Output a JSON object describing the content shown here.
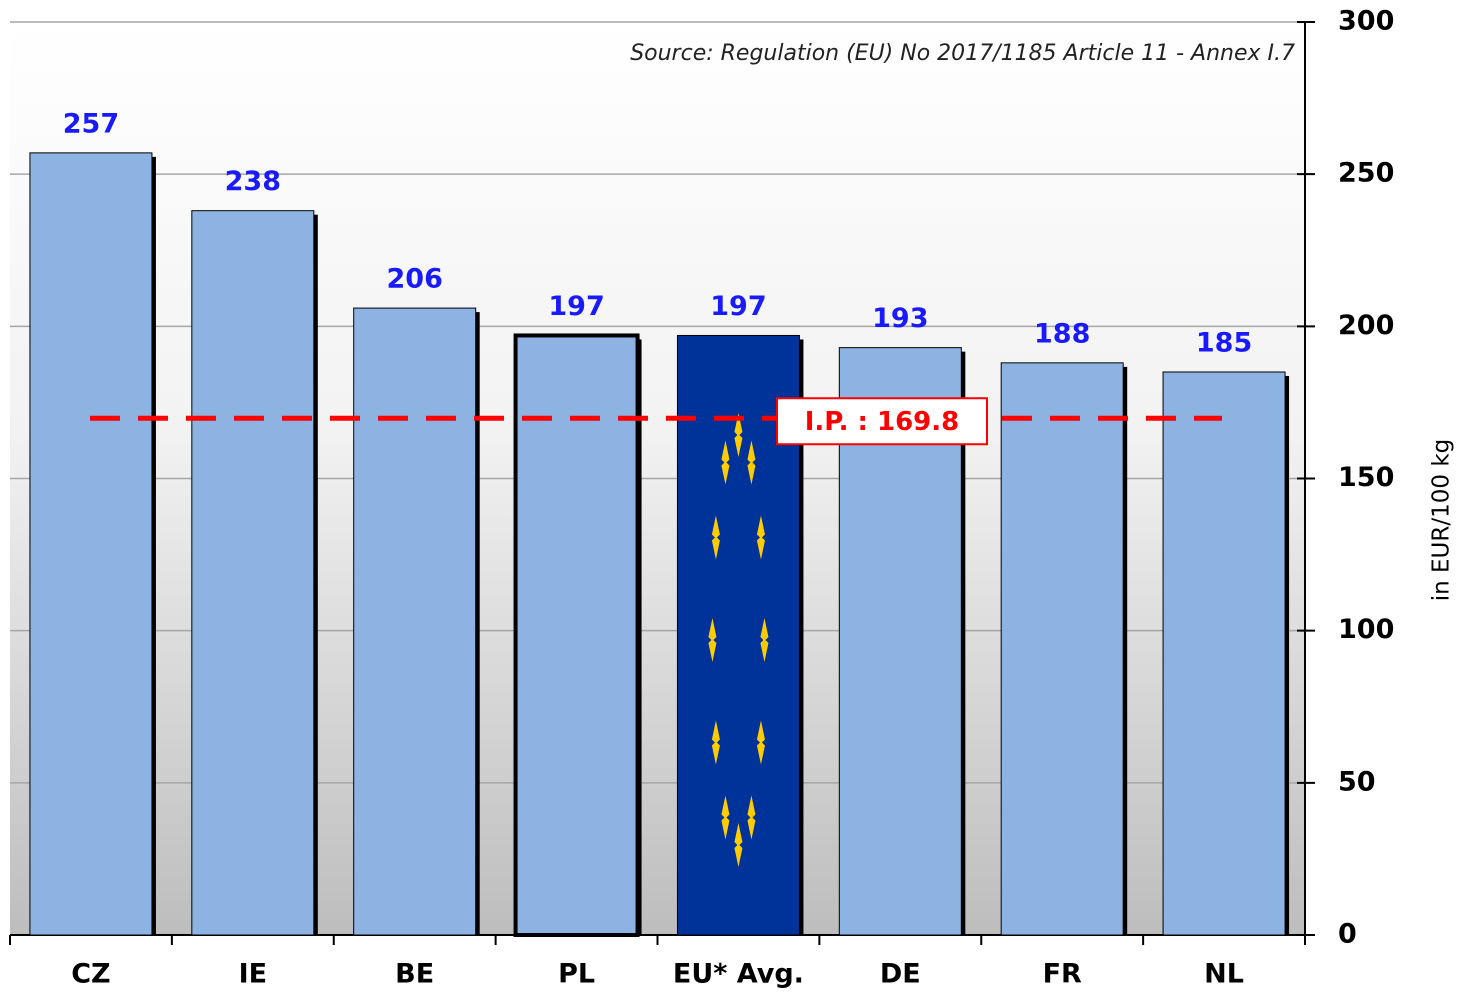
{
  "chart_data": {
    "type": "bar",
    "source": "Source: Regulation (EU) No 2017/1185 Article 11 - Annex I.7",
    "y_axis_label": "in EUR/100  kg",
    "categories": [
      "CZ",
      "IE",
      "BE",
      "PL",
      "EU* Avg.",
      "DE",
      "FR",
      "NL"
    ],
    "values": [
      257,
      238,
      206,
      197,
      197,
      193,
      188,
      185
    ],
    "colors": [
      "#8db3e2",
      "#8db3e2",
      "#8db3e2",
      "#8db3e2",
      "#003399",
      "#8db3e2",
      "#8db3e2",
      "#8db3e2"
    ],
    "highlight_index": 3,
    "flag_index": 4,
    "reference_line": {
      "label": "I.P. :",
      "value": 169.8,
      "color": "#ff0000"
    },
    "ylim": [
      0,
      300
    ],
    "yticks": [
      0,
      50,
      100,
      150,
      200,
      250,
      300
    ],
    "grid": true
  }
}
